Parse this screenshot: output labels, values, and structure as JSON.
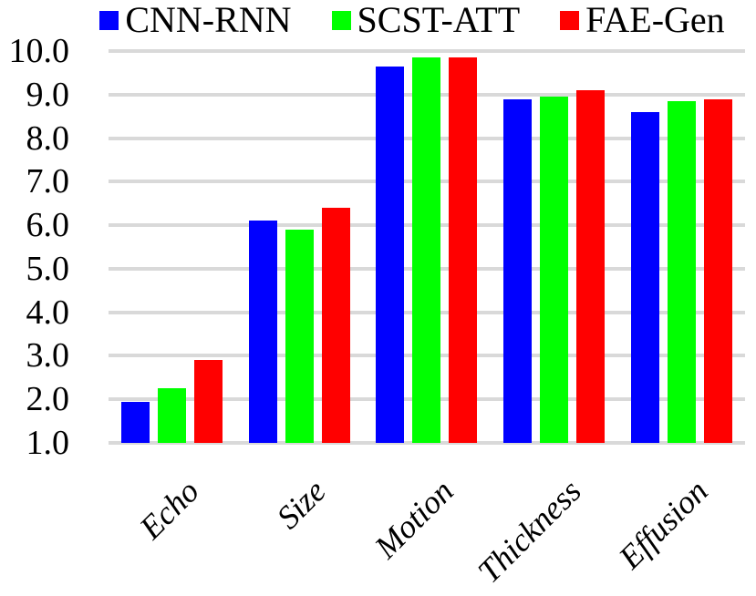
{
  "chart_data": {
    "type": "bar",
    "title": "",
    "categories": [
      "Echo",
      "Size",
      "Motion",
      "Thickness",
      "Effusion"
    ],
    "series": [
      {
        "name": "CNN-RNN",
        "color": "#0000ff",
        "values": [
          1.95,
          6.1,
          9.65,
          8.9,
          8.6
        ]
      },
      {
        "name": "SCST-ATT",
        "color": "#00ff00",
        "values": [
          2.25,
          5.9,
          9.85,
          8.95,
          8.85
        ]
      },
      {
        "name": "FAE-Gen",
        "color": "#ff0000",
        "values": [
          2.9,
          6.4,
          9.85,
          9.1,
          8.9
        ]
      }
    ],
    "y_axis": {
      "min": 1.0,
      "max": 10.0,
      "step": 1.0,
      "tick_labels": [
        "10.0",
        "9.0",
        "8.0",
        "7.0",
        "6.0",
        "5.0",
        "4.0",
        "3.0",
        "2.0",
        "1.0"
      ]
    },
    "x_axis": {
      "tick_rotation_deg": 45,
      "tick_style": "italic"
    },
    "grid": true,
    "legend_position": "top",
    "colors": {
      "gridline": "#d9d9d9",
      "background": "#ffffff",
      "text": "#000000"
    }
  }
}
